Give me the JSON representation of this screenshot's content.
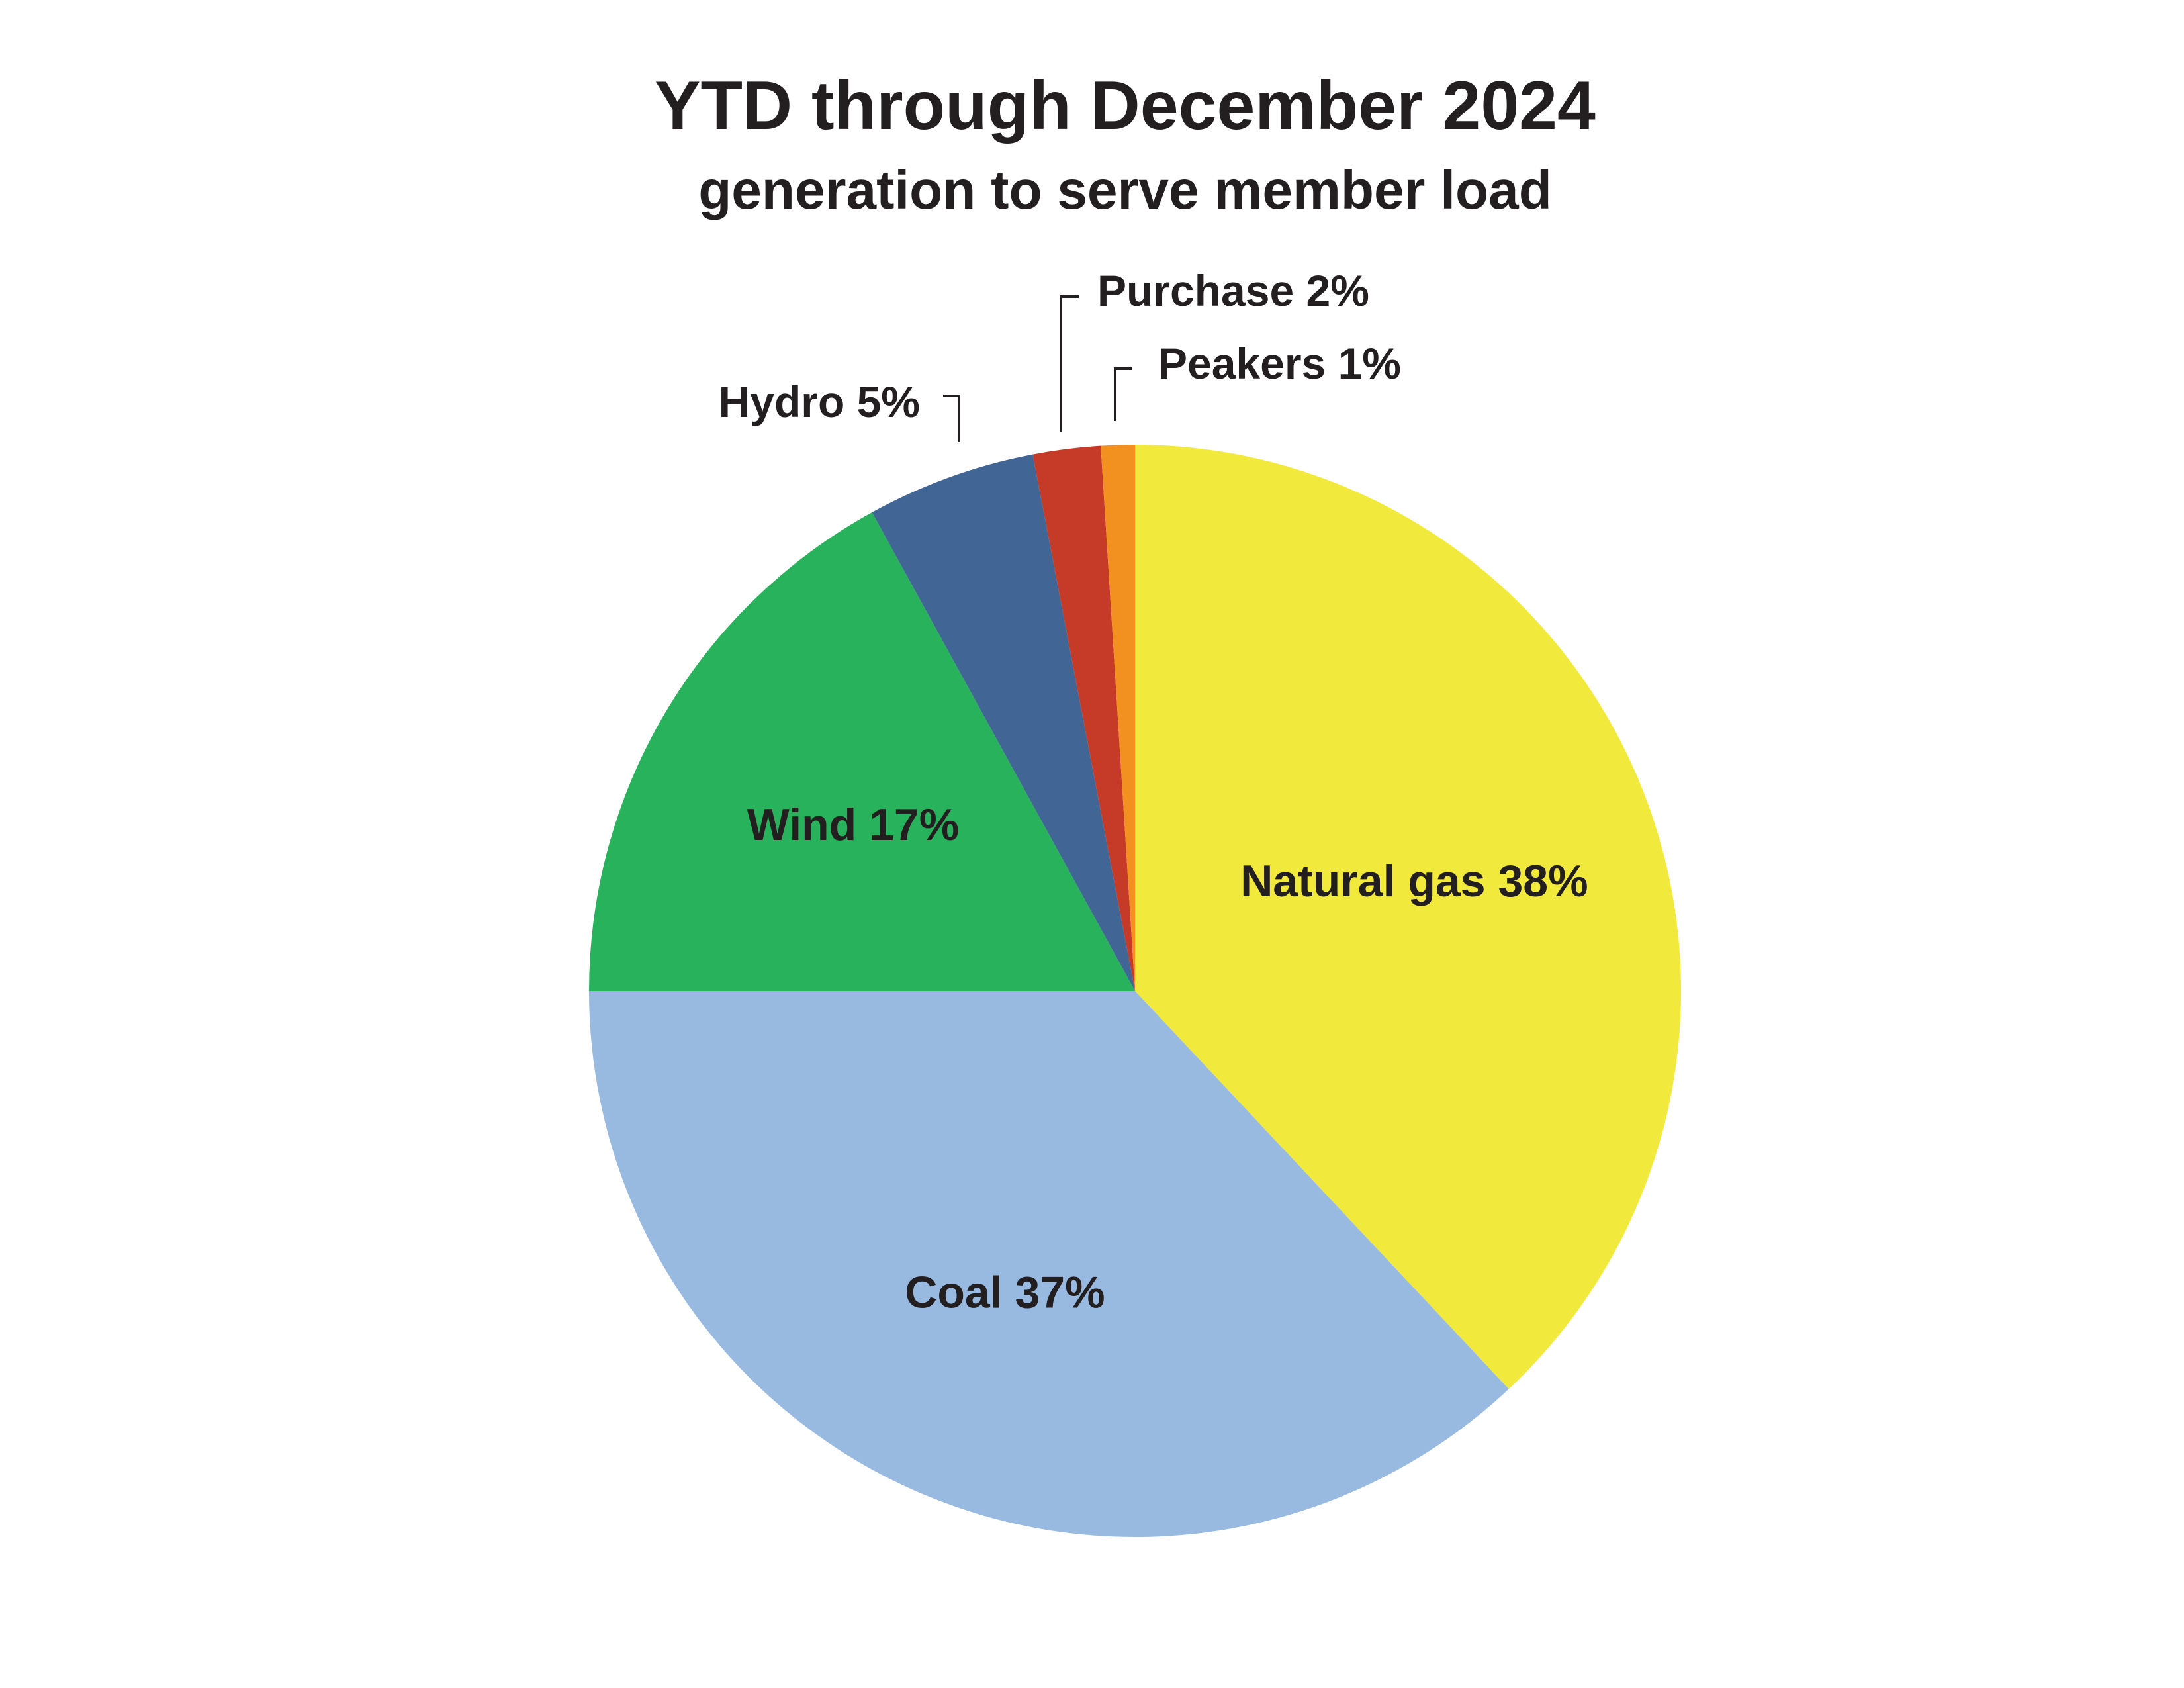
{
  "chart_data": {
    "type": "pie",
    "title": "YTD through December 2024",
    "subtitle": "generation to serve member load",
    "slices": [
      {
        "label": "Natural gas",
        "value": 38,
        "value_label": "38%",
        "color": "#f2e93d"
      },
      {
        "label": "Coal",
        "value": 37,
        "value_label": "37%",
        "color": "#98bae1"
      },
      {
        "label": "Wind",
        "value": 17,
        "value_label": "17%",
        "color": "#29b25c"
      },
      {
        "label": "Hydro",
        "value": 5,
        "value_label": "5%",
        "color": "#416594"
      },
      {
        "label": "Purchase",
        "value": 2,
        "value_label": "2%",
        "color": "#c63b28"
      },
      {
        "label": "Peakers",
        "value": 1,
        "value_label": "1%",
        "color": "#f39120"
      }
    ],
    "start_angle": "12 o'clock",
    "direction": "clockwise",
    "legend": "none",
    "label_placement": "inside for large slices, outside with leader lines for small slices"
  }
}
